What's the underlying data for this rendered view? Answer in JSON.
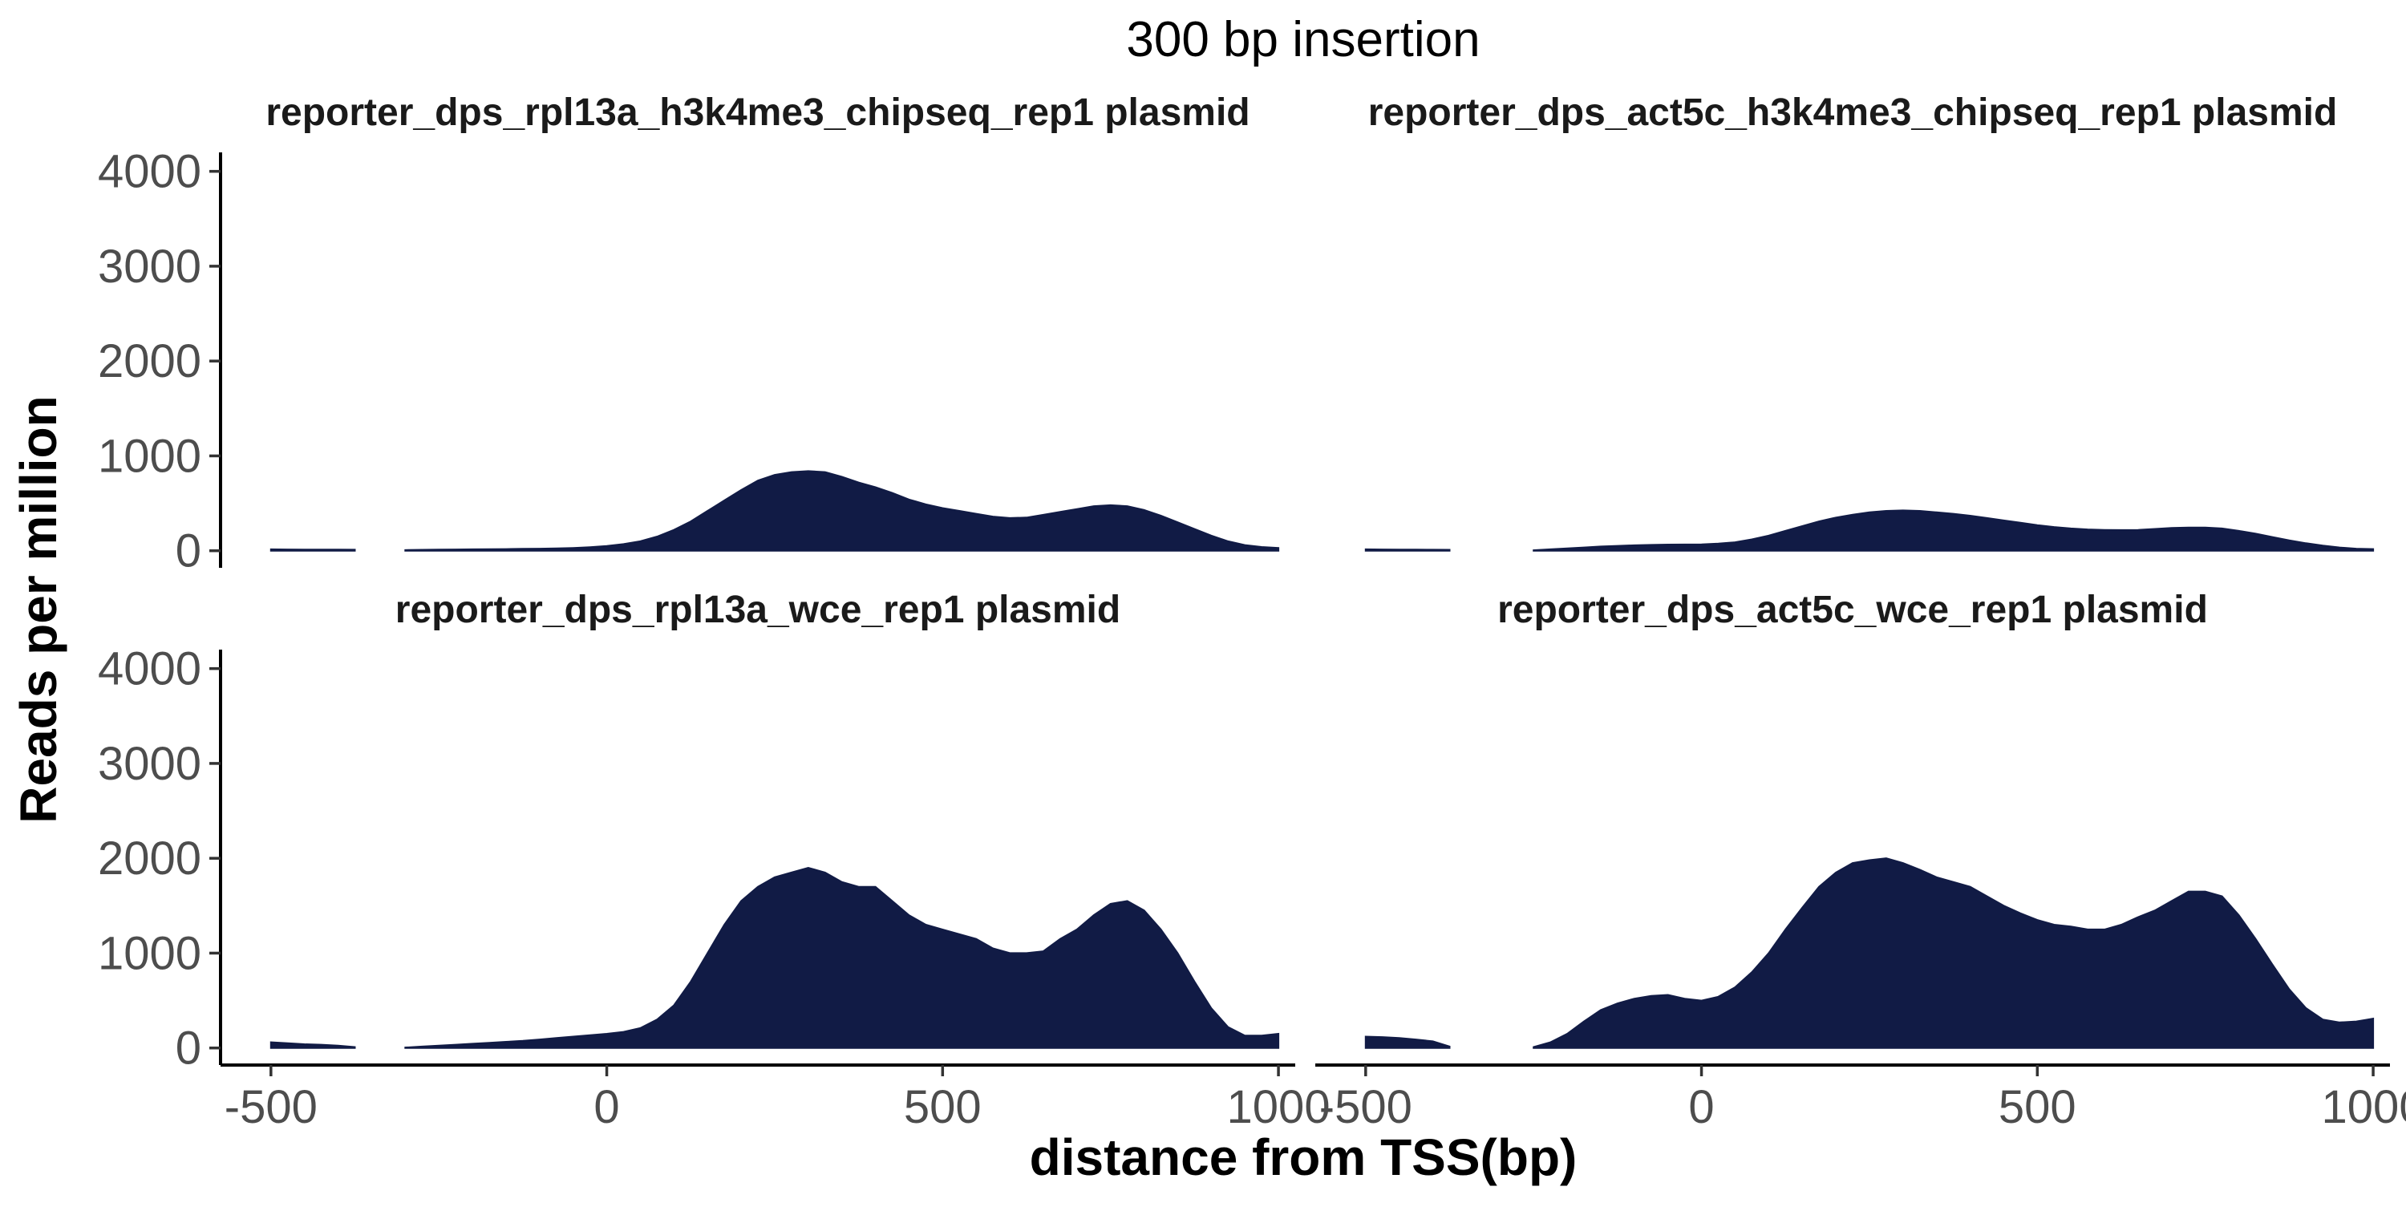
{
  "chart_data": {
    "type": "area",
    "title": "300 bp insertion",
    "xlabel": "distance from TSS(bp)",
    "ylabel": "Reads per million",
    "xlim": [
      -575,
      1025
    ],
    "ylim": [
      -180,
      4200
    ],
    "x_ticks": [
      -500,
      0,
      500,
      1000
    ],
    "y_ticks": [
      0,
      1000,
      2000,
      3000,
      4000
    ],
    "grid": false,
    "fill_color": "#111b45",
    "panels": [
      {
        "title": "reporter_dps_rpl13a_h3k4me3_chipseq_rep1 plasmid",
        "segments": [
          {
            "x": [
              -500,
              -475,
              -450,
              -425,
              -400,
              -375
            ],
            "y": [
              15,
              14,
              13,
              12,
              12,
              11
            ]
          },
          {
            "x": [
              -300,
              -275,
              -250,
              -225,
              -200,
              -175,
              -150,
              -125,
              -100,
              -75,
              -50,
              -25,
              0,
              25,
              50,
              75,
              100,
              125,
              150,
              175,
              200,
              225,
              250,
              275,
              300,
              325,
              350,
              375,
              400,
              425,
              450,
              475,
              500,
              525,
              550,
              575,
              600,
              625,
              650,
              675,
              700,
              725,
              750,
              775,
              800,
              825,
              850,
              875,
              900,
              925,
              950,
              975,
              1000
            ],
            "y": [
              8,
              10,
              12,
              14,
              15,
              16,
              18,
              20,
              22,
              25,
              30,
              38,
              50,
              70,
              100,
              150,
              220,
              310,
              420,
              530,
              640,
              740,
              800,
              830,
              840,
              830,
              780,
              720,
              670,
              610,
              540,
              490,
              450,
              420,
              390,
              360,
              345,
              350,
              380,
              410,
              440,
              470,
              480,
              470,
              430,
              370,
              300,
              230,
              160,
              100,
              60,
              40,
              30
            ]
          }
        ]
      },
      {
        "title": "reporter_dps_act5c_h3k4me3_chipseq_rep1 plasmid",
        "segments": [
          {
            "x": [
              -500,
              -475,
              -450,
              -425,
              -400,
              -375
            ],
            "y": [
              15,
              14,
              13,
              12,
              11,
              10
            ]
          },
          {
            "x": [
              -250,
              -225,
              -200,
              -175,
              -150,
              -125,
              -100,
              -75,
              -50,
              -25,
              0,
              25,
              50,
              75,
              100,
              125,
              150,
              175,
              200,
              225,
              250,
              275,
              300,
              325,
              350,
              375,
              400,
              425,
              450,
              475,
              500,
              525,
              550,
              575,
              600,
              625,
              650,
              675,
              700,
              725,
              750,
              775,
              800,
              825,
              850,
              875,
              900,
              925,
              950,
              975,
              1000
            ],
            "y": [
              5,
              15,
              25,
              35,
              45,
              52,
              58,
              62,
              65,
              66,
              68,
              75,
              90,
              120,
              160,
              210,
              260,
              310,
              350,
              380,
              405,
              420,
              425,
              420,
              405,
              390,
              370,
              345,
              320,
              295,
              270,
              250,
              235,
              225,
              220,
              218,
              220,
              230,
              240,
              245,
              245,
              235,
              210,
              180,
              145,
              110,
              80,
              55,
              35,
              22,
              18
            ]
          }
        ]
      },
      {
        "title": "reporter_dps_rpl13a_wce_rep1 plasmid",
        "segments": [
          {
            "x": [
              -500,
              -475,
              -450,
              -425,
              -400,
              -375
            ],
            "y": [
              60,
              50,
              40,
              35,
              25,
              10
            ]
          },
          {
            "x": [
              -300,
              -275,
              -250,
              -225,
              -200,
              -175,
              -150,
              -125,
              -100,
              -75,
              -50,
              -25,
              0,
              25,
              50,
              75,
              100,
              125,
              150,
              175,
              200,
              225,
              250,
              275,
              300,
              325,
              350,
              375,
              400,
              425,
              450,
              475,
              500,
              525,
              550,
              575,
              600,
              625,
              650,
              675,
              700,
              725,
              750,
              775,
              800,
              825,
              850,
              875,
              900,
              925,
              950,
              975,
              1000
            ],
            "y": [
              5,
              15,
              25,
              35,
              45,
              55,
              65,
              75,
              90,
              105,
              120,
              135,
              150,
              170,
              210,
              300,
              450,
              700,
              1000,
              1300,
              1550,
              1700,
              1800,
              1850,
              1900,
              1850,
              1750,
              1700,
              1700,
              1550,
              1400,
              1300,
              1250,
              1200,
              1150,
              1050,
              1000,
              1000,
              1020,
              1150,
              1250,
              1400,
              1520,
              1550,
              1450,
              1250,
              1000,
              700,
              420,
              220,
              130,
              130,
              150
            ]
          }
        ]
      },
      {
        "title": "reporter_dps_act5c_wce_rep1 plasmid",
        "segments": [
          {
            "x": [
              -500,
              -475,
              -450,
              -425,
              -400,
              -375
            ],
            "y": [
              120,
              115,
              105,
              90,
              70,
              15
            ]
          },
          {
            "x": [
              -250,
              -225,
              -200,
              -175,
              -150,
              -125,
              -100,
              -75,
              -50,
              -25,
              0,
              25,
              50,
              75,
              100,
              125,
              150,
              175,
              200,
              225,
              250,
              275,
              300,
              325,
              350,
              375,
              400,
              425,
              450,
              475,
              500,
              525,
              550,
              575,
              600,
              625,
              650,
              675,
              700,
              725,
              750,
              775,
              800,
              825,
              850,
              875,
              900,
              925,
              950,
              975,
              1000
            ],
            "y": [
              10,
              60,
              150,
              280,
              400,
              470,
              520,
              550,
              560,
              520,
              500,
              540,
              640,
              800,
              1000,
              1250,
              1480,
              1700,
              1850,
              1950,
              1980,
              2000,
              1950,
              1880,
              1800,
              1750,
              1700,
              1600,
              1500,
              1420,
              1350,
              1300,
              1280,
              1250,
              1250,
              1300,
              1380,
              1450,
              1550,
              1650,
              1650,
              1600,
              1400,
              1150,
              880,
              620,
              420,
              300,
              270,
              280,
              310
            ]
          }
        ]
      }
    ]
  }
}
